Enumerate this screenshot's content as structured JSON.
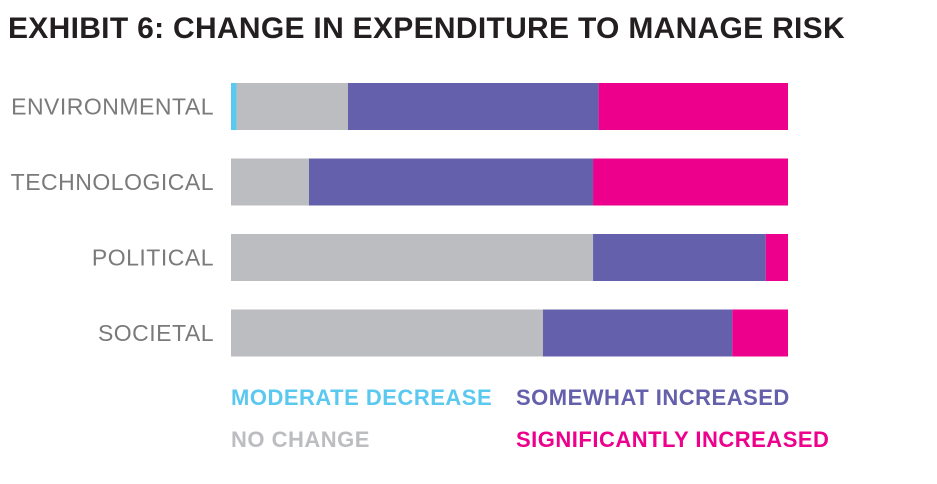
{
  "chart_data": {
    "type": "bar",
    "orientation": "horizontal",
    "stacked": true,
    "title": "EXHIBIT 6: CHANGE IN EXPENDITURE TO MANAGE RISK",
    "categories": [
      "ENVIRONMENTAL",
      "TECHNOLOGICAL",
      "POLITICAL",
      "SOCIETAL"
    ],
    "series": [
      {
        "name": "MODERATE DECREASE",
        "color": "#5bc8f0",
        "values": [
          1,
          0,
          0,
          0
        ]
      },
      {
        "name": "NO CHANGE",
        "color": "#bcbdc0",
        "values": [
          20,
          14,
          65,
          56
        ]
      },
      {
        "name": "SOMEWHAT INCREASED",
        "color": "#6460ab",
        "values": [
          45,
          51,
          31,
          34
        ]
      },
      {
        "name": "SIGNIFICANTLY INCREASED",
        "color": "#ec008c",
        "values": [
          34,
          35,
          4,
          10
        ]
      }
    ],
    "xlim": [
      0,
      100
    ],
    "grid": false,
    "legend_position": "bottom",
    "xlabel": "",
    "ylabel": ""
  }
}
